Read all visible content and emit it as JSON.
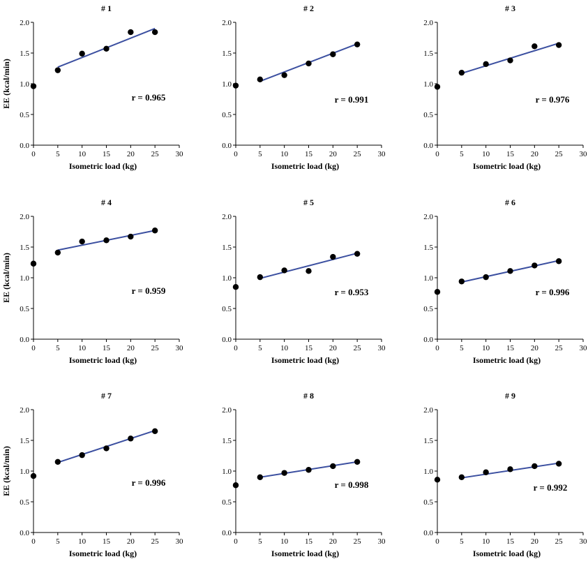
{
  "chart_data": [
    {
      "type": "scatter",
      "title": "# 1",
      "xlabel": "Isometric load (kg)",
      "ylabel": "EE (kcal/min)",
      "r_label": "r = 0.965",
      "xlim": [
        0,
        30
      ],
      "ylim": [
        0,
        2.0
      ],
      "xticks": [
        "0",
        "5",
        "10",
        "15",
        "20",
        "25",
        "30"
      ],
      "yticks": [
        "0.0",
        "0.5",
        "1.0",
        "1.5",
        "2.0"
      ],
      "points": [
        [
          0,
          0.96
        ],
        [
          5,
          1.22
        ],
        [
          10,
          1.49
        ],
        [
          15,
          1.57
        ],
        [
          20,
          1.84
        ],
        [
          25,
          1.84
        ]
      ],
      "fit": {
        "x0": 5,
        "y0": 1.27,
        "x1": 25,
        "y1": 1.9
      }
    },
    {
      "type": "scatter",
      "title": "# 2",
      "xlabel": "Isometric load (kg)",
      "ylabel": "",
      "r_label": "r = 0.991",
      "xlim": [
        0,
        30
      ],
      "ylim": [
        0,
        2.0
      ],
      "xticks": [
        "0",
        "5",
        "10",
        "15",
        "20",
        "25",
        "30"
      ],
      "yticks": [
        "0.0",
        "0.5",
        "1.0",
        "1.5",
        "2.0"
      ],
      "points": [
        [
          0,
          0.97
        ],
        [
          5,
          1.07
        ],
        [
          10,
          1.14
        ],
        [
          15,
          1.33
        ],
        [
          20,
          1.48
        ],
        [
          25,
          1.64
        ]
      ],
      "fit": {
        "x0": 5,
        "y0": 1.04,
        "x1": 25,
        "y1": 1.65
      }
    },
    {
      "type": "scatter",
      "title": "# 3",
      "xlabel": "Isometric load (kg)",
      "ylabel": "",
      "r_label": "r = 0.976",
      "xlim": [
        0,
        30
      ],
      "ylim": [
        0,
        2.0
      ],
      "xticks": [
        "0",
        "5",
        "10",
        "15",
        "20",
        "25",
        "30"
      ],
      "yticks": [
        "0.0",
        "0.5",
        "1.0",
        "1.5",
        "2.0"
      ],
      "points": [
        [
          0,
          0.95
        ],
        [
          5,
          1.18
        ],
        [
          10,
          1.32
        ],
        [
          15,
          1.38
        ],
        [
          20,
          1.61
        ],
        [
          25,
          1.63
        ]
      ],
      "fit": {
        "x0": 5,
        "y0": 1.17,
        "x1": 25,
        "y1": 1.66
      }
    },
    {
      "type": "scatter",
      "title": "# 4",
      "xlabel": "Isometric load (kg)",
      "ylabel": "EE (kcal/min)",
      "r_label": "r = 0.959",
      "xlim": [
        0,
        30
      ],
      "ylim": [
        0,
        2.0
      ],
      "xticks": [
        "0",
        "5",
        "10",
        "15",
        "20",
        "25",
        "30"
      ],
      "yticks": [
        "0.0",
        "0.5",
        "1.0",
        "1.5",
        "2.0"
      ],
      "points": [
        [
          0,
          1.23
        ],
        [
          5,
          1.41
        ],
        [
          10,
          1.59
        ],
        [
          15,
          1.61
        ],
        [
          20,
          1.67
        ],
        [
          25,
          1.77
        ]
      ],
      "fit": {
        "x0": 5,
        "y0": 1.45,
        "x1": 25,
        "y1": 1.77
      }
    },
    {
      "type": "scatter",
      "title": "# 5",
      "xlabel": "Isometric load (kg)",
      "ylabel": "",
      "r_label": "r = 0.953",
      "xlim": [
        0,
        30
      ],
      "ylim": [
        0,
        2.0
      ],
      "xticks": [
        "0",
        "5",
        "10",
        "15",
        "20",
        "25",
        "30"
      ],
      "yticks": [
        "0.0",
        "0.5",
        "1.0",
        "1.5",
        "2.0"
      ],
      "points": [
        [
          0,
          0.85
        ],
        [
          5,
          1.01
        ],
        [
          10,
          1.12
        ],
        [
          15,
          1.11
        ],
        [
          20,
          1.34
        ],
        [
          25,
          1.39
        ]
      ],
      "fit": {
        "x0": 5,
        "y0": 0.99,
        "x1": 25,
        "y1": 1.4
      }
    },
    {
      "type": "scatter",
      "title": "# 6",
      "xlabel": "Isometric load (kg)",
      "ylabel": "",
      "r_label": "r = 0.996",
      "xlim": [
        0,
        30
      ],
      "ylim": [
        0,
        2.0
      ],
      "xticks": [
        "0",
        "5",
        "10",
        "15",
        "20",
        "25",
        "30"
      ],
      "yticks": [
        "0.0",
        "0.5",
        "1.0",
        "1.5",
        "2.0"
      ],
      "points": [
        [
          0,
          0.77
        ],
        [
          5,
          0.94
        ],
        [
          10,
          1.01
        ],
        [
          15,
          1.11
        ],
        [
          20,
          1.2
        ],
        [
          25,
          1.27
        ]
      ],
      "fit": {
        "x0": 5,
        "y0": 0.93,
        "x1": 25,
        "y1": 1.28
      }
    },
    {
      "type": "scatter",
      "title": "# 7",
      "xlabel": "Isometric load (kg)",
      "ylabel": "EE (kcal/min)",
      "r_label": "r = 0.996",
      "xlim": [
        0,
        30
      ],
      "ylim": [
        0,
        2.0
      ],
      "xticks": [
        "0",
        "5",
        "10",
        "15",
        "20",
        "25",
        "30"
      ],
      "yticks": [
        "0.0",
        "0.5",
        "1.0",
        "1.5",
        "2.0"
      ],
      "points": [
        [
          0,
          0.92
        ],
        [
          5,
          1.15
        ],
        [
          10,
          1.26
        ],
        [
          15,
          1.37
        ],
        [
          20,
          1.53
        ],
        [
          25,
          1.65
        ]
      ],
      "fit": {
        "x0": 5,
        "y0": 1.14,
        "x1": 25,
        "y1": 1.66
      }
    },
    {
      "type": "scatter",
      "title": "# 8",
      "xlabel": "Isometric load (kg)",
      "ylabel": "",
      "r_label": "r = 0.998",
      "xlim": [
        0,
        30
      ],
      "ylim": [
        0,
        2.0
      ],
      "xticks": [
        "0",
        "5",
        "10",
        "15",
        "20",
        "25",
        "30"
      ],
      "yticks": [
        "0.0",
        "0.5",
        "1.0",
        "1.5",
        "2.0"
      ],
      "points": [
        [
          0,
          0.77
        ],
        [
          5,
          0.9
        ],
        [
          10,
          0.97
        ],
        [
          15,
          1.02
        ],
        [
          20,
          1.08
        ],
        [
          25,
          1.15
        ]
      ],
      "fit": {
        "x0": 5,
        "y0": 0.9,
        "x1": 25,
        "y1": 1.15
      }
    },
    {
      "type": "scatter",
      "title": "# 9",
      "xlabel": "Isometric load (kg)",
      "ylabel": "",
      "r_label": "r = 0.992",
      "xlim": [
        0,
        30
      ],
      "ylim": [
        0,
        2.0
      ],
      "xticks": [
        "0",
        "5",
        "10",
        "15",
        "20",
        "25",
        "30"
      ],
      "yticks": [
        "0.0",
        "0.5",
        "1.0",
        "1.5",
        "2.0"
      ],
      "points": [
        [
          0,
          0.86
        ],
        [
          5,
          0.9
        ],
        [
          10,
          0.98
        ],
        [
          15,
          1.03
        ],
        [
          20,
          1.08
        ],
        [
          25,
          1.12
        ]
      ],
      "fit": {
        "x0": 5,
        "y0": 0.89,
        "x1": 25,
        "y1": 1.13
      }
    }
  ],
  "colors": {
    "fit_line": "#3b4fa0",
    "point": "#000000",
    "axis": "#000000"
  }
}
